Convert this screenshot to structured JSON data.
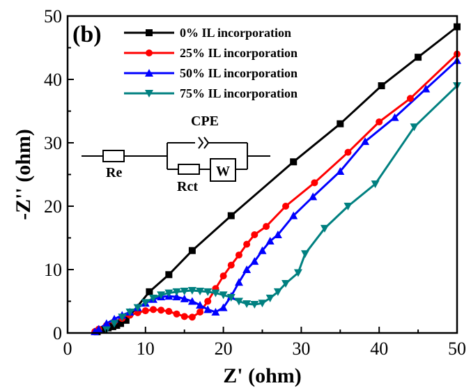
{
  "panel_label": "(b)",
  "colors": {
    "s0": "#000000",
    "s25": "#ff0000",
    "s50": "#0000ff",
    "s75": "#008080"
  },
  "circuit": {
    "cpe": "CPE",
    "re": "Re",
    "rct": "Rct",
    "w": "W"
  },
  "chart_data": {
    "type": "line",
    "title": "",
    "xlabel": "Z' (ohm)",
    "ylabel": "-Z'' (ohm)",
    "xlim": [
      0,
      50
    ],
    "ylim": [
      0,
      50
    ],
    "xticks": [
      0,
      10,
      20,
      30,
      40,
      50
    ],
    "yticks": [
      0,
      10,
      20,
      30,
      40,
      50
    ],
    "grid": false,
    "legend_position": "top-left",
    "series": [
      {
        "name": "0% IL incorporation",
        "marker": "square",
        "color": "#000000",
        "x": [
          3.8,
          4.5,
          5.2,
          5.8,
          6.3,
          6.8,
          7.5,
          10.5,
          13.0,
          16.0,
          21.0,
          29.0,
          35.0,
          40.3,
          45.0,
          50.0
        ],
        "y": [
          0.2,
          0.5,
          0.8,
          1.0,
          1.2,
          1.5,
          2.0,
          6.5,
          9.2,
          13.0,
          18.5,
          27.0,
          33.0,
          39.0,
          43.5,
          48.3
        ]
      },
      {
        "name": "25% IL incorporation",
        "marker": "circle",
        "color": "#ff0000",
        "x": [
          3.5,
          4.0,
          5.0,
          6.0,
          7.0,
          8.0,
          9.0,
          10.0,
          11.0,
          12.0,
          13.0,
          14.0,
          15.0,
          16.0,
          17.0,
          18.0,
          19.0,
          20.0,
          21.0,
          22.0,
          23.0,
          24.0,
          25.5,
          28.0,
          31.7,
          36.0,
          40.0,
          44.0,
          50.0
        ],
        "y": [
          0.2,
          0.6,
          1.2,
          1.8,
          2.3,
          2.8,
          3.2,
          3.5,
          3.7,
          3.6,
          3.4,
          3.0,
          2.6,
          2.5,
          3.3,
          5.0,
          7.0,
          9.0,
          10.7,
          12.3,
          14.0,
          15.5,
          16.8,
          20.0,
          23.7,
          28.5,
          33.3,
          37.0,
          44.0
        ]
      },
      {
        "name": "50% IL incorporation",
        "marker": "triangle-up",
        "color": "#0000ff",
        "x": [
          3.5,
          4.0,
          5.0,
          6.0,
          7.0,
          8.0,
          9.0,
          10.0,
          11.0,
          12.0,
          13.0,
          14.0,
          15.0,
          16.0,
          17.0,
          18.0,
          19.0,
          20.0,
          21.0,
          22.0,
          23.0,
          24.0,
          25.0,
          26.0,
          27.0,
          29.0,
          31.5,
          35.0,
          38.2,
          42.0,
          46.0,
          50.0
        ],
        "y": [
          0.2,
          0.6,
          1.5,
          2.2,
          2.8,
          3.3,
          4.0,
          4.7,
          5.3,
          5.7,
          5.8,
          5.7,
          5.4,
          5.0,
          4.4,
          3.7,
          3.3,
          4.0,
          5.8,
          8.0,
          10.0,
          11.3,
          13.0,
          14.5,
          15.5,
          18.5,
          21.5,
          25.5,
          30.2,
          34.0,
          38.5,
          43.0
        ]
      },
      {
        "name": "75% IL incorporation",
        "marker": "triangle-down",
        "color": "#008080",
        "x": [
          5.0,
          6.0,
          7.0,
          8.0,
          9.0,
          10.0,
          11.0,
          12.0,
          13.0,
          14.0,
          15.0,
          16.0,
          17.0,
          18.0,
          19.0,
          20.0,
          21.0,
          22.0,
          23.0,
          24.0,
          25.0,
          26.0,
          27.0,
          28.0,
          29.6,
          30.5,
          33.0,
          36.0,
          39.5,
          44.5,
          50.0
        ],
        "y": [
          0.5,
          1.5,
          2.5,
          3.3,
          4.0,
          4.8,
          5.5,
          6.0,
          6.3,
          6.5,
          6.6,
          6.7,
          6.6,
          6.5,
          6.3,
          6.0,
          5.6,
          5.0,
          4.6,
          4.5,
          4.7,
          5.5,
          6.5,
          7.8,
          9.5,
          12.5,
          16.5,
          20.0,
          23.5,
          32.5,
          39.0
        ]
      }
    ]
  }
}
